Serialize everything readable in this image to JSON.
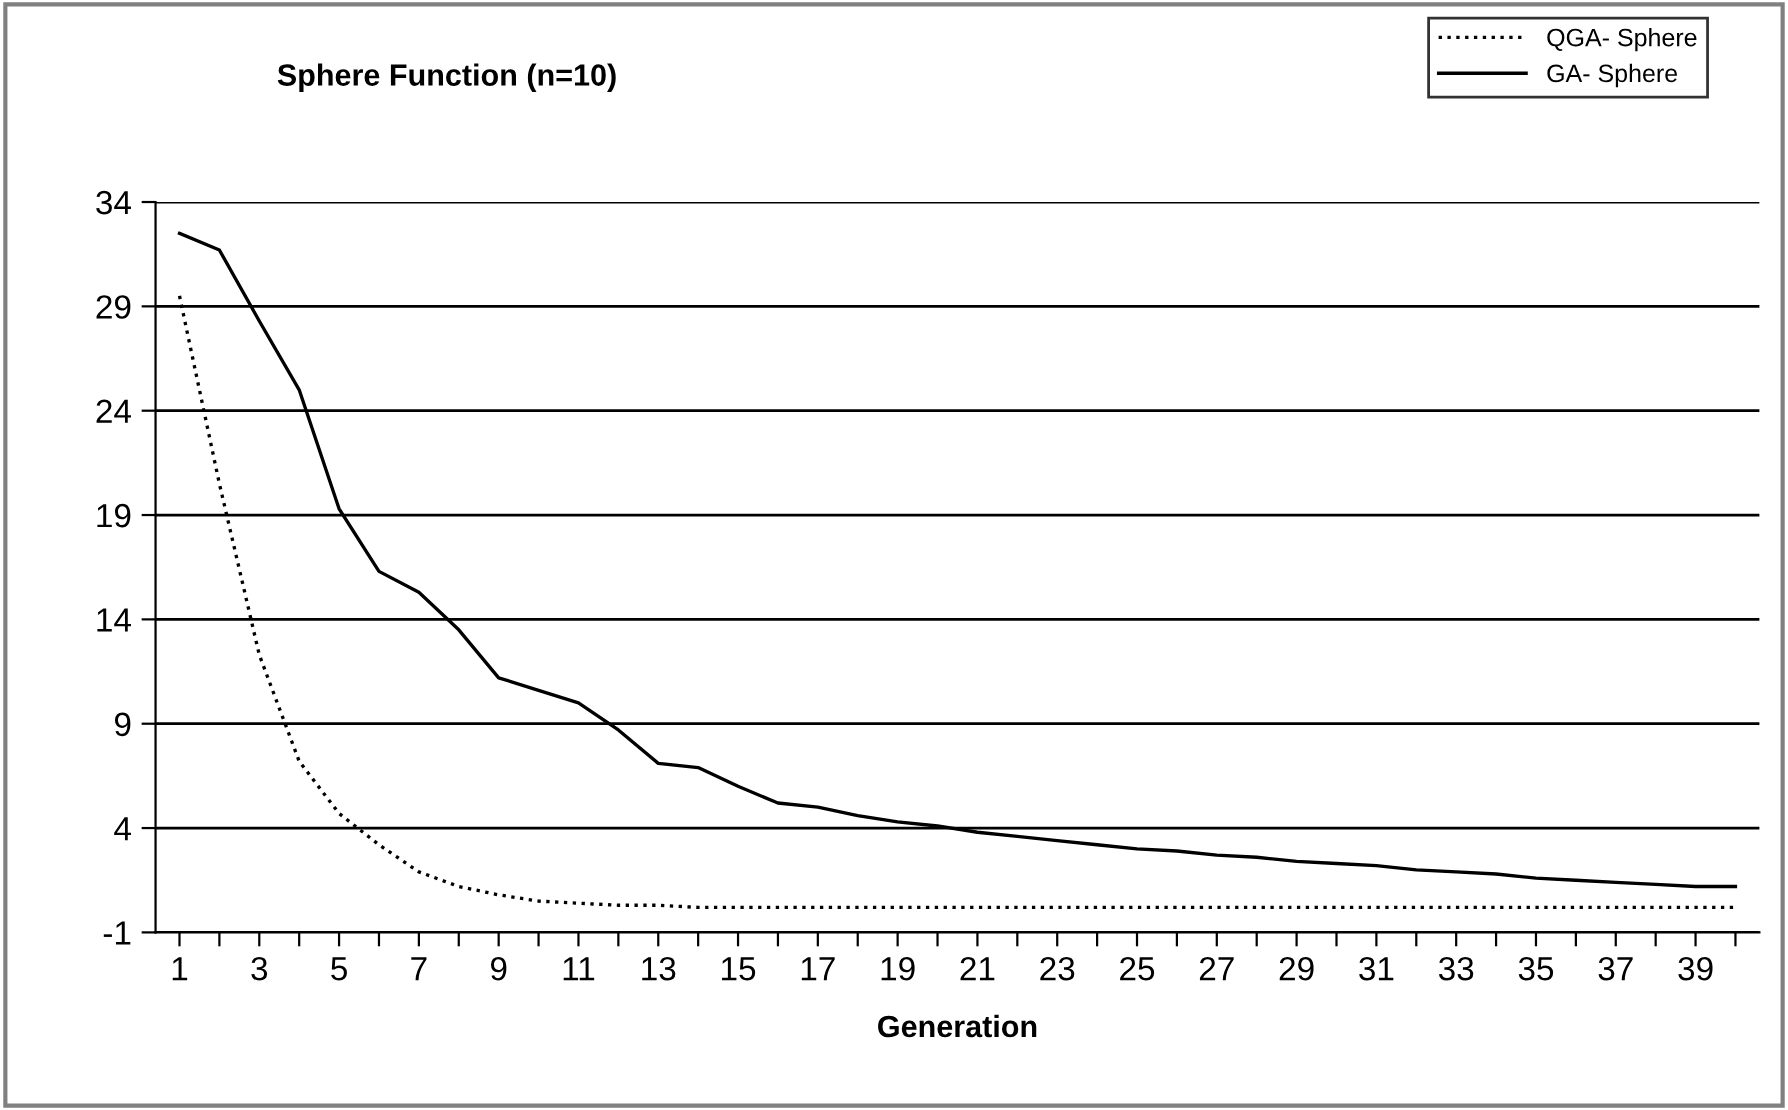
{
  "chart_data": {
    "type": "line",
    "title": "Sphere Function (n=10)",
    "xlabel": "Generation",
    "categories": [
      "1",
      null,
      "3",
      null,
      "5",
      null,
      "7",
      null,
      "9",
      null,
      "11",
      null,
      "13",
      null,
      "15",
      null,
      "17",
      null,
      "19",
      null,
      "21",
      null,
      "23",
      null,
      "25",
      null,
      "27",
      null,
      "29",
      null,
      "31",
      null,
      "33",
      null,
      "35",
      null,
      "37",
      null,
      "39",
      null
    ],
    "series": [
      {
        "name": "QGA- Sphere",
        "color": "#000000",
        "line_style": "dotted",
        "values": [
          29.5,
          20.5,
          12.3,
          7.2,
          4.7,
          3.2,
          1.9,
          1.2,
          0.8,
          0.5,
          0.4,
          0.3,
          0.3,
          0.2,
          0.2,
          0.2,
          0.2,
          0.2,
          0.2,
          0.2,
          0.2,
          0.2,
          0.2,
          0.2,
          0.2,
          0.2,
          0.2,
          0.2,
          0.2,
          0.2,
          0.2,
          0.2,
          0.2,
          0.2,
          0.2,
          0.2,
          0.2,
          0.2,
          0.2,
          0.2
        ]
      },
      {
        "name": "GA- Sphere",
        "color": "#000000",
        "line_style": "solid",
        "values": [
          32.5,
          31.7,
          28.3,
          25,
          19.3,
          16.3,
          15.3,
          13.5,
          11.2,
          10.6,
          10,
          8.7,
          7.1,
          6.9,
          6,
          5.2,
          5,
          4.6,
          4.3,
          4.1,
          3.8,
          3.6,
          3.4,
          3.2,
          3,
          2.9,
          2.7,
          2.6,
          2.4,
          2.3,
          2.2,
          2,
          1.9,
          1.8,
          1.6,
          1.5,
          1.4,
          1.3,
          1.2,
          1.2
        ]
      }
    ],
    "ylim": [
      -1,
      34
    ],
    "yticks": [
      -1,
      4,
      9,
      14,
      19,
      24,
      29,
      34
    ],
    "grid": "y",
    "legend": "top right",
    "marker": "none"
  }
}
